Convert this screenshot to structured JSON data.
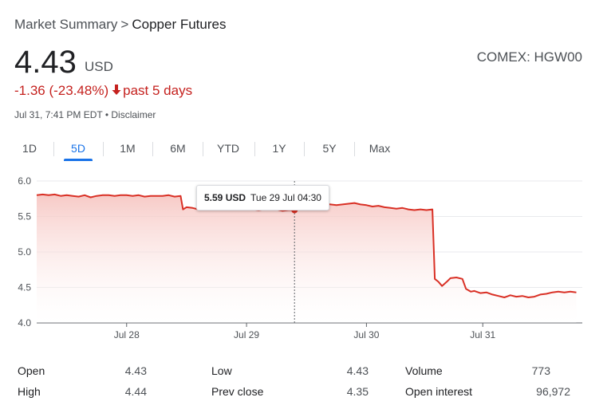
{
  "breadcrumb": {
    "parent": "Market Summary",
    "separator": ">",
    "current": "Copper Futures"
  },
  "quote": {
    "price": "4.43",
    "currency": "USD",
    "exchange": "COMEX: HGW00",
    "change": "-1.36 (-23.48%)",
    "change_arrow": "down-arrow-icon",
    "period": "past 5 days",
    "timestamp": "Jul 31, 7:41 PM EDT",
    "disclaimer": "Disclaimer"
  },
  "tabs": [
    {
      "label": "1D",
      "active": false
    },
    {
      "label": "5D",
      "active": true
    },
    {
      "label": "1M",
      "active": false
    },
    {
      "label": "6M",
      "active": false
    },
    {
      "label": "YTD",
      "active": false
    },
    {
      "label": "1Y",
      "active": false
    },
    {
      "label": "5Y",
      "active": false
    },
    {
      "label": "Max",
      "active": false
    }
  ],
  "colors": {
    "line": "#d93025",
    "fill_top": "#f6c4c0",
    "accent": "#1a73e8",
    "negative": "#c5221f"
  },
  "tooltip": {
    "value": "5.59 USD",
    "date": "Tue 29 Jul 04:30",
    "x": 2.15,
    "y": 5.59
  },
  "chart_data": {
    "type": "area",
    "title": "",
    "xlabel": "",
    "ylabel": "",
    "ylim": [
      4.0,
      6.0
    ],
    "xlim": [
      0,
      4.55
    ],
    "y_ticks": [
      "6.0",
      "5.5",
      "5.0",
      "4.5",
      "4.0"
    ],
    "x_ticks": [
      {
        "label": "Jul 28",
        "x": 0.75
      },
      {
        "label": "Jul 29",
        "x": 1.75
      },
      {
        "label": "Jul 30",
        "x": 2.75
      },
      {
        "label": "Jul 31",
        "x": 3.72
      }
    ],
    "grid": true,
    "series": [
      {
        "x": [
          0,
          0.05,
          0.1,
          0.15,
          0.2,
          0.25,
          0.3,
          0.35,
          0.4,
          0.45,
          0.5,
          0.55,
          0.6,
          0.65,
          0.7,
          0.75,
          0.8,
          0.85,
          0.9,
          0.95,
          1.0,
          1.05,
          1.1,
          1.15,
          1.2,
          1.22,
          1.25,
          1.3,
          1.35,
          1.4,
          1.45,
          1.5,
          1.55,
          1.6,
          1.65,
          1.7,
          1.75,
          1.8,
          1.85,
          1.9,
          1.95,
          2.0,
          2.05,
          2.1,
          2.15,
          2.2,
          2.25,
          2.3,
          2.35,
          2.4,
          2.45,
          2.5,
          2.55,
          2.6,
          2.65,
          2.7,
          2.75,
          2.8,
          2.85,
          2.9,
          2.95,
          3.0,
          3.05,
          3.1,
          3.15,
          3.2,
          3.25,
          3.3,
          3.32,
          3.35,
          3.38,
          3.42,
          3.45,
          3.5,
          3.55,
          3.58,
          3.62,
          3.65,
          3.7,
          3.75,
          3.8,
          3.85,
          3.9,
          3.95,
          4.0,
          4.05,
          4.1,
          4.15,
          4.2,
          4.25,
          4.3,
          4.35,
          4.4,
          4.45,
          4.5
        ],
        "values": [
          5.8,
          5.81,
          5.8,
          5.81,
          5.79,
          5.8,
          5.79,
          5.78,
          5.8,
          5.77,
          5.79,
          5.8,
          5.8,
          5.79,
          5.8,
          5.8,
          5.79,
          5.8,
          5.78,
          5.79,
          5.79,
          5.79,
          5.8,
          5.78,
          5.79,
          5.6,
          5.63,
          5.62,
          5.6,
          5.63,
          5.61,
          5.62,
          5.6,
          5.61,
          5.6,
          5.6,
          5.61,
          5.6,
          5.59,
          5.6,
          5.61,
          5.6,
          5.58,
          5.59,
          5.59,
          5.62,
          5.64,
          5.66,
          5.67,
          5.68,
          5.67,
          5.66,
          5.67,
          5.68,
          5.69,
          5.67,
          5.66,
          5.64,
          5.65,
          5.63,
          5.62,
          5.61,
          5.62,
          5.6,
          5.59,
          5.6,
          5.59,
          5.6,
          4.62,
          4.58,
          4.52,
          4.58,
          4.63,
          4.64,
          4.62,
          4.48,
          4.44,
          4.45,
          4.42,
          4.43,
          4.4,
          4.38,
          4.36,
          4.39,
          4.37,
          4.38,
          4.36,
          4.37,
          4.4,
          4.41,
          4.43,
          4.44,
          4.43,
          4.44,
          4.43
        ]
      }
    ]
  },
  "stats": [
    {
      "label": "Open",
      "value": "4.43"
    },
    {
      "label": "High",
      "value": "4.44"
    },
    {
      "label": "Low",
      "value": "4.43"
    },
    {
      "label": "Prev close",
      "value": "4.35"
    },
    {
      "label": "Volume",
      "value": "773"
    },
    {
      "label": "Open interest",
      "value": "96,972"
    }
  ]
}
